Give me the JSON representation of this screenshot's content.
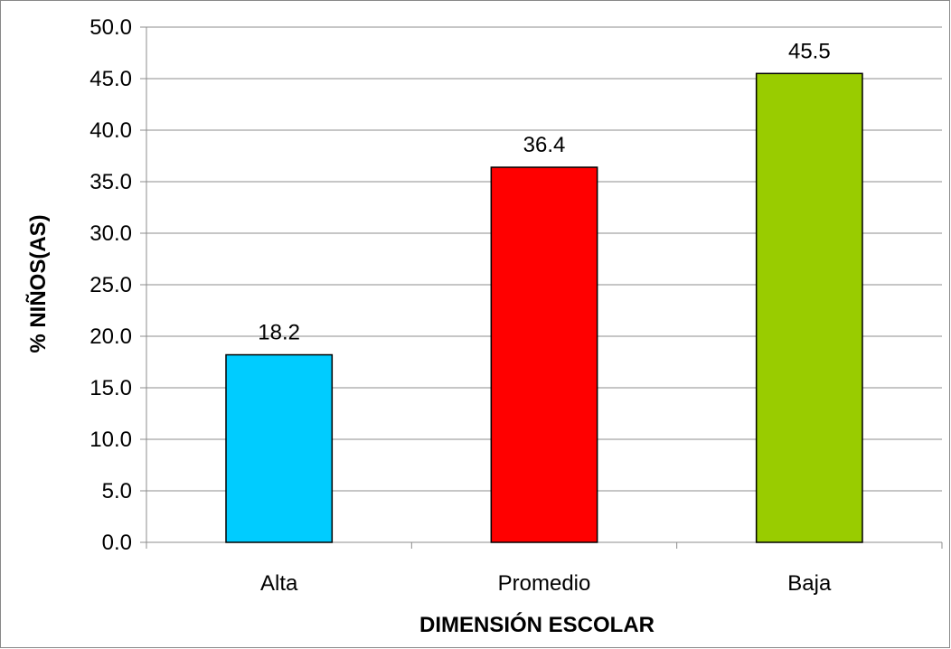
{
  "chart_data": {
    "type": "bar",
    "title": "",
    "xlabel": "DIMENSIÓN  ESCOLAR",
    "ylabel": "% NIÑOS(AS)",
    "categories": [
      "Alta",
      "Promedio",
      "Baja"
    ],
    "values": [
      18.2,
      36.4,
      45.5
    ],
    "data_labels": [
      "18.2",
      "36.4",
      "45.5"
    ],
    "bar_colors": [
      "#00CCFF",
      "#FF0000",
      "#99CC00"
    ],
    "ylim": [
      0,
      50
    ],
    "yticks": [
      "0.0",
      "5.0",
      "10.0",
      "15.0",
      "20.0",
      "25.0",
      "30.0",
      "35.0",
      "40.0",
      "45.0",
      "50.0"
    ],
    "ytick_values": [
      0,
      5,
      10,
      15,
      20,
      25,
      30,
      35,
      40,
      45,
      50
    ],
    "grid": true,
    "legend": "none"
  }
}
